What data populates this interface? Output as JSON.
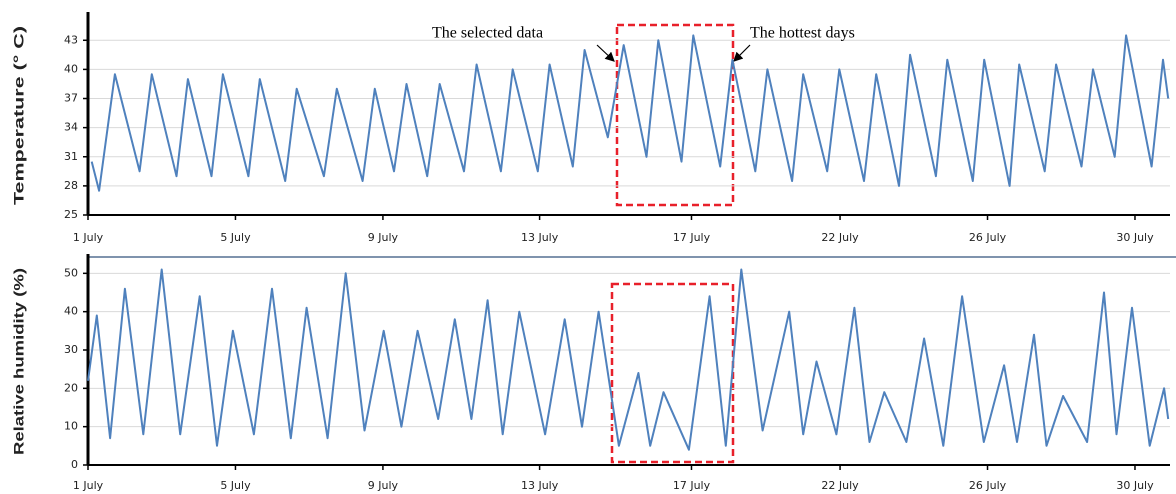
{
  "chart_data": [
    {
      "type": "line",
      "y_label": "Temperature (° C)",
      "annotations": [
        "The selected data",
        "The hottest days"
      ],
      "x": [
        0.1,
        0.3,
        0.73,
        1.4,
        1.73,
        2.4,
        2.71,
        3.35,
        3.66,
        4.35,
        4.66,
        5.35,
        5.66,
        6.4,
        6.75,
        7.45,
        7.78,
        8.3,
        8.64,
        9.2,
        9.54,
        10.2,
        10.54,
        11.2,
        11.52,
        12.2,
        12.52,
        13.15,
        13.47,
        14.1,
        14.53,
        15.15,
        15.47,
        16.1,
        16.42,
        17.15,
        17.48,
        18.1,
        18.43,
        19.1,
        19.4,
        20.05,
        20.38,
        21.05,
        21.38,
        22.0,
        22.3,
        23.0,
        23.31,
        24.0,
        24.31,
        25.0,
        25.26,
        25.95,
        26.26,
        26.95,
        27.26,
        27.85,
        28.16,
        28.85,
        29.16,
        29.3
      ],
      "series": [
        {
          "color": "#4f81bd",
          "values": [
            30.5,
            27.5,
            39.5,
            29.5,
            39.5,
            29,
            39,
            29,
            39.5,
            29,
            39,
            28.5,
            38,
            29,
            38,
            28.5,
            38,
            29.5,
            38.5,
            29,
            38.5,
            29.5,
            40.5,
            29.5,
            40,
            29.5,
            40.5,
            30,
            42,
            33,
            42.5,
            31,
            43,
            30.5,
            43.5,
            30,
            41,
            29.5,
            40,
            28.5,
            39.5,
            29.5,
            40,
            28.5,
            39.5,
            28,
            41.5,
            29,
            41,
            28.5,
            41,
            28,
            40.5,
            29.5,
            40.5,
            30,
            40,
            31,
            43.5,
            30,
            41,
            37
          ]
        }
      ],
      "xlim": [
        0,
        29.35
      ],
      "xticks": [
        {
          "value": 0,
          "label": "1 July"
        },
        {
          "value": 4,
          "label": "5 July"
        },
        {
          "value": 8,
          "label": "9 July"
        },
        {
          "value": 12.25,
          "label": "13 July"
        },
        {
          "value": 16.37,
          "label": "17 July"
        },
        {
          "value": 20.4,
          "label": "22 July"
        },
        {
          "value": 24.4,
          "label": "26 July"
        },
        {
          "value": 28.4,
          "label": "30 July"
        }
      ],
      "ylim": [
        25,
        45.5
      ],
      "yticks": [
        25,
        28,
        31,
        34,
        37,
        40,
        43
      ],
      "grid": true
    },
    {
      "type": "line",
      "y_label": "Relative humidity (%)",
      "x": [
        0,
        0.24,
        0.6,
        1.0,
        1.5,
        2.0,
        2.5,
        3.03,
        3.5,
        3.93,
        4.5,
        4.99,
        5.5,
        5.93,
        6.5,
        6.99,
        7.5,
        8.02,
        8.5,
        8.94,
        9.5,
        9.95,
        10.4,
        10.84,
        11.25,
        11.7,
        12.4,
        12.93,
        13.4,
        13.85,
        14.4,
        14.93,
        15.25,
        15.61,
        16.3,
        16.86,
        17.3,
        17.72,
        18.3,
        19.02,
        19.4,
        19.76,
        20.3,
        20.79,
        21.2,
        21.6,
        22.2,
        22.68,
        23.2,
        23.71,
        24.3,
        24.85,
        25.2,
        25.66,
        26.0,
        26.45,
        27.1,
        27.56,
        27.9,
        28.32,
        28.8,
        29.19,
        29.3
      ],
      "series": [
        {
          "color": "#4f81bd",
          "values": [
            22,
            39,
            7,
            46,
            8,
            51,
            8,
            44,
            5,
            35,
            8,
            46,
            7,
            41,
            7,
            50,
            9,
            35,
            10,
            35,
            12,
            38,
            12,
            43,
            8,
            40,
            8,
            38,
            10,
            40,
            5,
            24,
            5,
            19,
            4,
            44,
            5,
            51,
            9,
            40,
            8,
            27,
            8,
            41,
            6,
            19,
            6,
            33,
            5,
            44,
            6,
            26,
            6,
            34,
            5,
            18,
            6,
            45,
            8,
            41,
            5,
            20,
            12
          ]
        }
      ],
      "xlim": [
        0,
        29.35
      ],
      "xticks": [
        {
          "value": 0,
          "label": "1 July"
        },
        {
          "value": 4,
          "label": "5 July"
        },
        {
          "value": 8,
          "label": "9 July"
        },
        {
          "value": 12.25,
          "label": "13 July"
        },
        {
          "value": 16.37,
          "label": "17 July"
        },
        {
          "value": 20.4,
          "label": "22 July"
        },
        {
          "value": 24.4,
          "label": "26 July"
        },
        {
          "value": 28.4,
          "label": "30 July"
        }
      ],
      "ylim": [
        0,
        54
      ],
      "yticks": [
        0,
        10,
        20,
        30,
        40,
        50
      ],
      "grid": true
    }
  ]
}
